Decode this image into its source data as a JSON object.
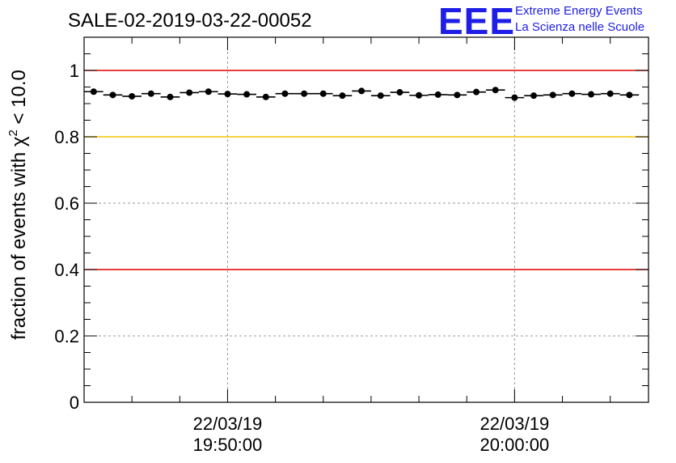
{
  "chart_data": {
    "type": "scatter",
    "title": "SALE-02-2019-03-22-00052",
    "ylabel": "fraction of events with χ² < 10.0",
    "ylabel_prefix": "fraction of events with ",
    "ylabel_chi": "χ",
    "ylabel_exp": "2",
    "ylabel_suffix": " < 10.0",
    "xlabel": "",
    "ylim": [
      0,
      1.1
    ],
    "xlim": [
      "22/03/19 19:45:00",
      "22/03/19 20:04:40"
    ],
    "x_ticks": [
      {
        "date": "22/03/19",
        "time": "19:50:00"
      },
      {
        "date": "22/03/19",
        "time": "20:00:00"
      }
    ],
    "y_ticks": [
      "0",
      "0.2",
      "0.4",
      "0.6",
      "0.8",
      "1"
    ],
    "grid": true,
    "reference_lines": [
      {
        "y": 1.0,
        "color": "#e00000"
      },
      {
        "y": 0.8,
        "color": "#f5c400"
      },
      {
        "y": 0.4,
        "color": "#e00000"
      }
    ],
    "series": [
      {
        "x": [
          "19:45:20",
          "19:46:00",
          "19:46:40",
          "19:47:20",
          "19:48:00",
          "19:48:40",
          "19:49:20",
          "19:50:00",
          "19:50:40",
          "19:51:20",
          "19:52:00",
          "19:52:40",
          "19:53:20",
          "19:54:00",
          "19:54:40",
          "19:55:20",
          "19:56:00",
          "19:56:40",
          "19:57:20",
          "19:58:00",
          "19:58:40",
          "19:59:20",
          "20:00:00",
          "20:00:40",
          "20:01:20",
          "20:02:00",
          "20:02:40",
          "20:03:20",
          "20:04:00"
        ],
        "y": [
          0.936,
          0.926,
          0.922,
          0.93,
          0.92,
          0.933,
          0.936,
          0.929,
          0.928,
          0.92,
          0.93,
          0.93,
          0.93,
          0.924,
          0.938,
          0.924,
          0.934,
          0.925,
          0.927,
          0.926,
          0.935,
          0.941,
          0.918,
          0.924,
          0.926,
          0.93,
          0.928,
          0.93,
          0.926
        ],
        "bin_half_width": "00:00:20",
        "color": "#000000"
      }
    ]
  },
  "logo": {
    "letters": "EEE",
    "line1": "Extreme Energy Events",
    "line2": "La Scienza nelle Scuole",
    "color": "#1e1ee6"
  }
}
